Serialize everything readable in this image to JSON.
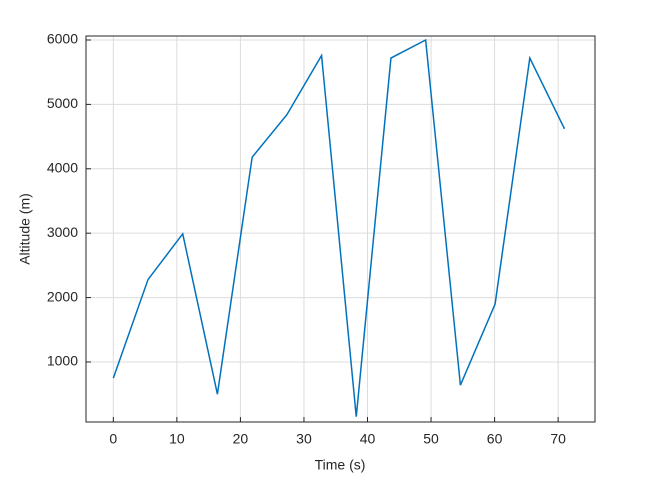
{
  "chart_data": {
    "type": "line",
    "x_label": "Time (s)",
    "y_label": "Altitude (m)",
    "x": [
      0,
      5.46,
      10.92,
      16.38,
      21.85,
      27.31,
      32.77,
      38.23,
      43.69,
      49.15,
      54.62,
      60.08,
      65.54,
      71
    ],
    "series": [
      {
        "name": "Altitude",
        "color": "#0072bd",
        "values": [
          750,
          2280,
          2990,
          500,
          4180,
          4840,
          5760,
          150,
          5720,
          6000,
          640,
          1900,
          5720,
          4620
        ]
      }
    ],
    "xlim": [
      -4.3,
      75.8
    ],
    "xticks": [
      0,
      10,
      20,
      30,
      40,
      50,
      60,
      70
    ],
    "ylim": [
      68,
      6062
    ],
    "yticks": [
      1000,
      2000,
      3000,
      4000,
      5000,
      6000
    ],
    "grid": true
  }
}
